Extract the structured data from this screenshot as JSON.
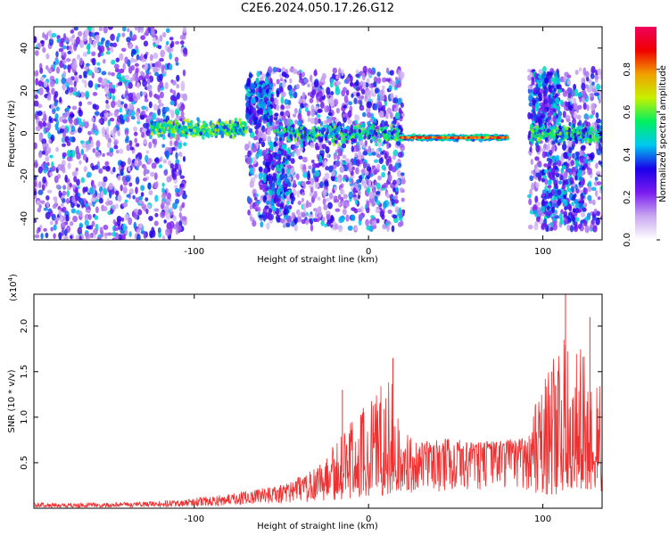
{
  "title": "C2E6.2024.050.17.26.G12",
  "chart_data": [
    {
      "type": "heatmap",
      "xlabel": "Height of straight line (km)",
      "ylabel": "Frequency (Hz)",
      "xlim": [
        -192,
        134
      ],
      "ylim": [
        -50,
        50
      ],
      "xticks": [
        -100,
        0,
        100
      ],
      "xtick_labels": [
        "-100",
        "0",
        "100"
      ],
      "yticks": [
        -40,
        -20,
        0,
        20,
        40
      ],
      "ytick_labels": [
        "-40",
        "-20",
        "0",
        "20",
        "40"
      ],
      "colorbar": {
        "label": "Normalized spectral amplitude",
        "ticks": [
          0.0,
          0.2,
          0.4,
          0.6,
          0.8
        ],
        "tick_labels": [
          "0.0",
          "0.2",
          "0.4",
          "0.6",
          "0.8"
        ],
        "range": [
          0,
          1
        ],
        "colormap": [
          "#ffffff",
          "#c9a8f0",
          "#7a1cf0",
          "#1a00e8",
          "#00c8f0",
          "#00f060",
          "#c8f000",
          "#f0a000",
          "#f00000",
          "#f0005a"
        ]
      },
      "features": {
        "steady_band": {
          "x": [
            18,
            80
          ],
          "freq_hz": -2,
          "amplitude": 0.95
        },
        "mid_band": {
          "x": [
            -125,
            -70
          ],
          "freq_hz": 2,
          "amplitude": 0.6
        },
        "noise_clouds": [
          {
            "x": [
              -192,
              -105
            ],
            "freq": [
              -50,
              50
            ],
            "amplitude": 0.35
          },
          {
            "x": [
              -70,
              20
            ],
            "freq": [
              -45,
              30
            ],
            "amplitude": 0.35
          },
          {
            "x": [
              92,
              134
            ],
            "freq": [
              -45,
              30
            ],
            "amplitude": 0.35
          }
        ]
      }
    },
    {
      "type": "line",
      "xlabel": "Height of straight line (km)",
      "ylabel": "SNR (10 * v/v)",
      "scale_label": "(x10",
      "scale_exponent": "4",
      "xlim": [
        -192,
        134
      ],
      "ylim": [
        0,
        2.35
      ],
      "xticks": [
        -100,
        0,
        100
      ],
      "xtick_labels": [
        "-100",
        "0",
        "100"
      ],
      "yticks": [
        0.5,
        1.0,
        1.5,
        2.0
      ],
      "ytick_labels": [
        "0.5",
        "1.0",
        "1.5",
        "2.0"
      ],
      "series_color": "#f03030",
      "envelope": [
        {
          "x": -192,
          "base": 0.03,
          "peak": 0.06
        },
        {
          "x": -150,
          "base": 0.03,
          "peak": 0.06
        },
        {
          "x": -110,
          "base": 0.05,
          "peak": 0.09
        },
        {
          "x": -80,
          "base": 0.1,
          "peak": 0.16
        },
        {
          "x": -50,
          "base": 0.18,
          "peak": 0.26
        },
        {
          "x": -30,
          "base": 0.25,
          "peak": 0.45
        },
        {
          "x": -10,
          "base": 0.35,
          "peak": 0.95
        },
        {
          "x": 0,
          "base": 0.45,
          "peak": 1.2
        },
        {
          "x": 12,
          "base": 0.45,
          "peak": 1.5
        },
        {
          "x": 20,
          "base": 0.5,
          "peak": 0.85
        },
        {
          "x": 30,
          "base": 0.58,
          "peak": 0.72
        },
        {
          "x": 45,
          "base": 0.62,
          "peak": 0.78
        },
        {
          "x": 60,
          "base": 0.62,
          "peak": 0.72
        },
        {
          "x": 78,
          "base": 0.65,
          "peak": 0.75
        },
        {
          "x": 90,
          "base": 0.66,
          "peak": 0.78
        },
        {
          "x": 96,
          "base": 0.55,
          "peak": 1.25
        },
        {
          "x": 110,
          "base": 0.45,
          "peak": 1.9
        },
        {
          "x": 120,
          "base": 0.5,
          "peak": 1.8
        },
        {
          "x": 134,
          "base": 0.55,
          "peak": 1.35
        }
      ],
      "spikes": [
        {
          "x": 113,
          "value": 2.35
        },
        {
          "x": 127,
          "value": 2.1
        },
        {
          "x": 14,
          "value": 1.65
        },
        {
          "x": -15,
          "value": 1.3
        },
        {
          "x": -3,
          "value": 1.1
        },
        {
          "x": 105,
          "value": 1.5
        }
      ]
    }
  ]
}
